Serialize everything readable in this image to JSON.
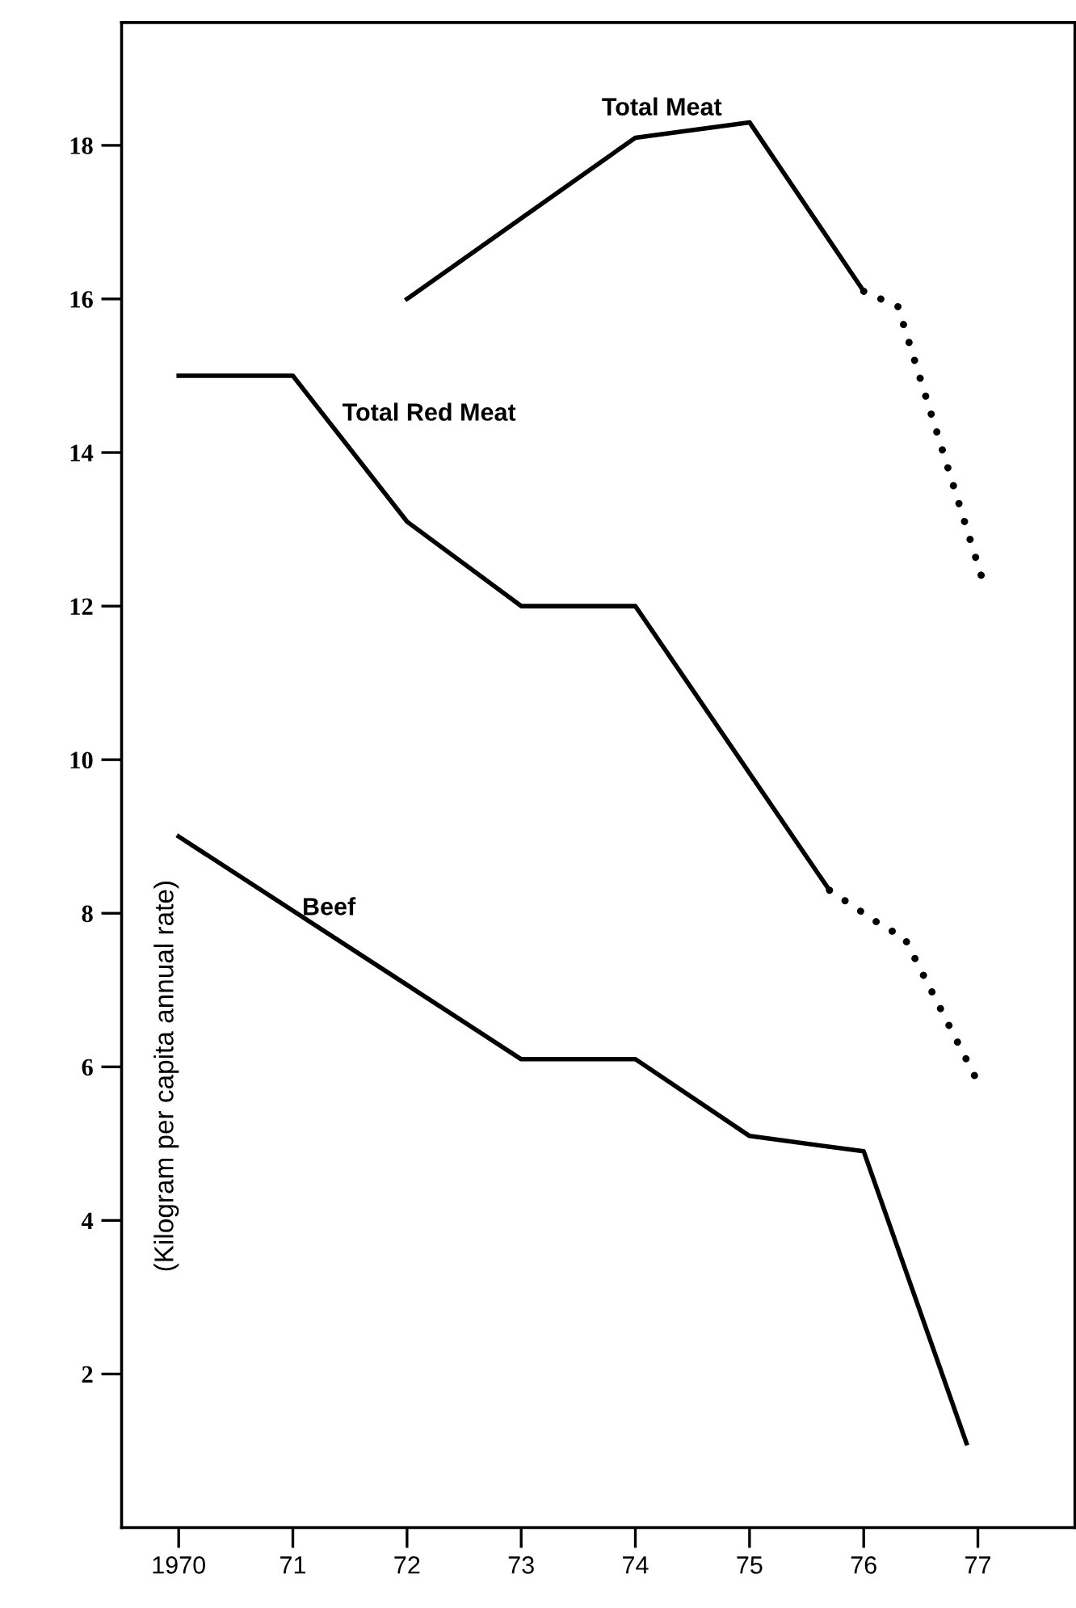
{
  "chart_data": {
    "type": "line",
    "ylabel": "(Kilogram per capita annual rate)",
    "xlim": [
      1969.5,
      1977.85
    ],
    "ylim": [
      0,
      19.6
    ],
    "xticks": [
      1970,
      {
        "value": 1971,
        "label": "71"
      },
      {
        "value": 1972,
        "label": "72"
      },
      {
        "value": 1973,
        "label": "73"
      },
      {
        "value": 1974,
        "label": "74"
      },
      {
        "value": 1975,
        "label": "75"
      },
      {
        "value": 1976,
        "label": "76"
      },
      {
        "value": 1977,
        "label": "77"
      }
    ],
    "yticks": [
      2,
      4,
      6,
      8,
      10,
      12,
      14,
      16,
      18
    ],
    "grid": false,
    "legend": false,
    "marker": "none",
    "series": [
      {
        "name": "Total Meat",
        "color": "#000000",
        "line_style": "solid",
        "x": [
          1972,
          1974,
          1975,
          1976
        ],
        "values": [
          16.0,
          18.1,
          18.3,
          16.1
        ]
      },
      {
        "color": "#000000",
        "line_style": "dotted",
        "x": [
          1976,
          1976.3,
          1977.05
        ],
        "values": [
          16.1,
          15.9,
          12.3
        ]
      },
      {
        "name": "Total Red Meat",
        "color": "#000000",
        "line_style": "solid",
        "x": [
          1970,
          1971,
          1972,
          1973,
          1974,
          1975.7
        ],
        "values": [
          15.0,
          15.0,
          13.1,
          12.0,
          12.0,
          8.3
        ]
      },
      {
        "color": "#000000",
        "line_style": "dotted",
        "x": [
          1975.7,
          1976.2,
          1976.35,
          1977
        ],
        "values": [
          8.3,
          7.8,
          7.7,
          5.8
        ]
      },
      {
        "name": "Beef",
        "color": "#000000",
        "line_style": "solid",
        "x": [
          1970,
          1973,
          1974,
          1975,
          1976,
          1976.9
        ],
        "values": [
          9.0,
          6.1,
          6.1,
          5.1,
          4.9,
          1.1
        ]
      }
    ]
  }
}
